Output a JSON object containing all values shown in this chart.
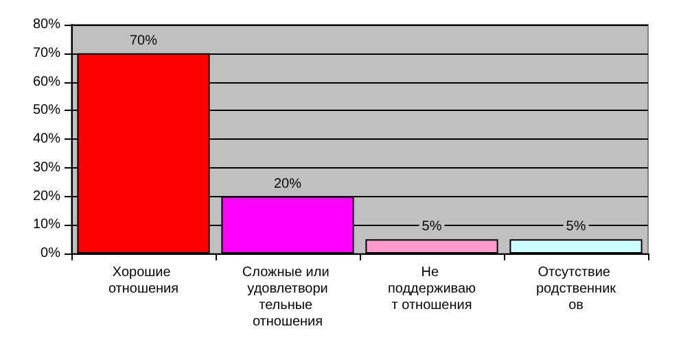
{
  "chart_data": {
    "type": "bar",
    "categories": [
      "Хорошие отношения",
      "Сложные или удовлетворительные отношения",
      "Не поддерживают отношения",
      "Отсутствие родственников"
    ],
    "values": [
      70,
      20,
      5,
      5
    ],
    "colors": [
      "#ff0000",
      "#ff00ff",
      "#ff99cc",
      "#ccffff"
    ],
    "value_labels": [
      "70%",
      "20%",
      "5%",
      "5%"
    ],
    "ylim": [
      0,
      80
    ],
    "yticks": [
      {
        "value": 0,
        "label": "0%"
      },
      {
        "value": 10,
        "label": "10%"
      },
      {
        "value": 20,
        "label": "20%"
      },
      {
        "value": 30,
        "label": "30%"
      },
      {
        "value": 40,
        "label": "40%"
      },
      {
        "value": 50,
        "label": "50%"
      },
      {
        "value": 60,
        "label": "60%"
      },
      {
        "value": 70,
        "label": "70%"
      },
      {
        "value": 80,
        "label": "80%"
      }
    ],
    "grid": "y"
  }
}
